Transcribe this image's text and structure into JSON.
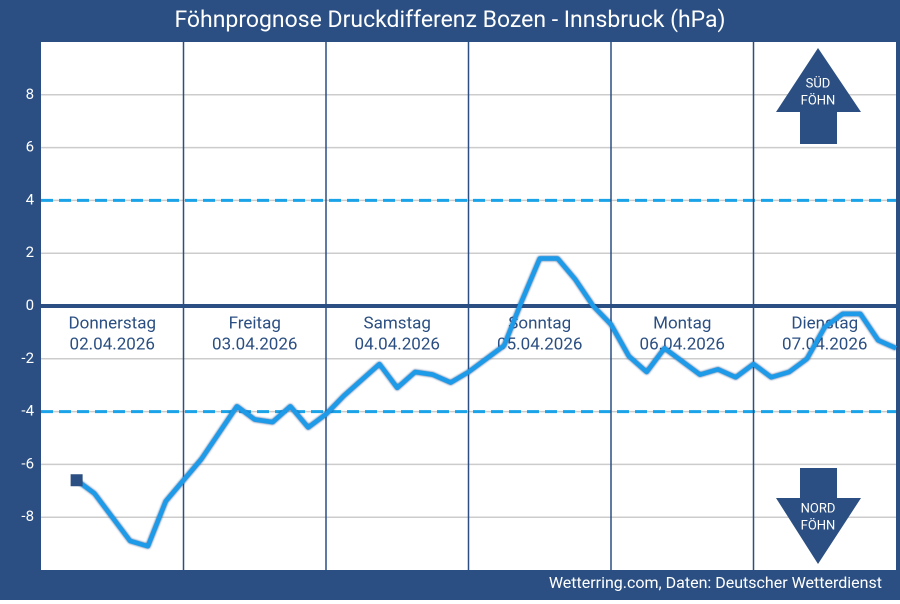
{
  "chart_data": {
    "type": "line",
    "title": "Föhnprognose Druckdifferenz Bozen - Innsbruck (hPa)",
    "footer": "Wetterring.com, Daten: Deutscher Wetterdienst",
    "categories": [
      "Donnerstag",
      "Freitag",
      "Samstag",
      "Sonntag",
      "Montag",
      "Dienstag"
    ],
    "dates": [
      "02.04.2026",
      "03.04.2026",
      "04.04.2026",
      "05.04.2026",
      "06.04.2026",
      "07.04.2026"
    ],
    "x": [
      6,
      9,
      12,
      15,
      18,
      21,
      24,
      27,
      30,
      33,
      36,
      39,
      42,
      45,
      48,
      51,
      54,
      57,
      60,
      63,
      66,
      69,
      72,
      75,
      78,
      81,
      84,
      87,
      90,
      93,
      96,
      99,
      102,
      105,
      108,
      111,
      114,
      117,
      120,
      123,
      126,
      129,
      132,
      135,
      138,
      141,
      144
    ],
    "series": [
      {
        "color": "#1e9be8",
        "values": [
          -6.6,
          -7.1,
          -8.0,
          -8.9,
          -9.1,
          -7.4,
          -6.6,
          -5.8,
          -4.8,
          -3.8,
          -4.3,
          -4.4,
          -3.8,
          -4.6,
          -4.1,
          -3.4,
          -2.8,
          -2.2,
          -3.1,
          -2.5,
          -2.6,
          -2.9,
          -2.5,
          -2.0,
          -1.5,
          0.2,
          1.8,
          1.8,
          1.0,
          0.0,
          -0.7,
          -1.9,
          -2.5,
          -1.6,
          -2.1,
          -2.6,
          -2.4,
          -2.7,
          -2.2,
          -2.7,
          -2.5,
          -2.0,
          -0.8,
          -0.3,
          -0.3,
          -1.3,
          -1.6
        ]
      }
    ],
    "xlim": [
      0,
      144
    ],
    "ylim": [
      -10,
      10
    ],
    "yticks": [
      -8,
      -6,
      -4,
      -2,
      0,
      2,
      4,
      6,
      8
    ],
    "grid": true,
    "thresholds": [
      4,
      -4
    ],
    "threshold_color": "#1aa3e8",
    "arrows": [
      {
        "line1": "SÜD",
        "line2": "FÖHN"
      },
      {
        "line1": "NORD",
        "line2": "FÖHN"
      }
    ]
  }
}
